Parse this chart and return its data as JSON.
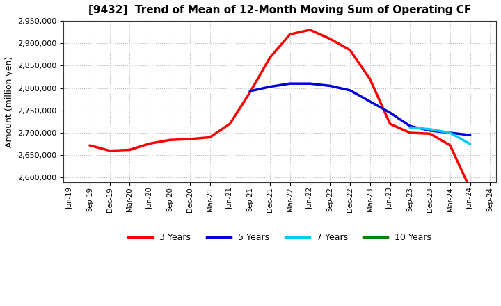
{
  "title": "[9432]  Trend of Mean of 12-Month Moving Sum of Operating CF",
  "ylabel": "Amount (million yen)",
  "background_color": "#ffffff",
  "grid_color": "#bbbbbb",
  "ylim": [
    2590000,
    2940000
  ],
  "yticks": [
    2600000,
    2650000,
    2700000,
    2750000,
    2800000,
    2850000,
    2900000,
    2950000
  ],
  "x_labels": [
    "Jun-19",
    "Sep-19",
    "Dec-19",
    "Mar-20",
    "Jun-20",
    "Sep-20",
    "Dec-20",
    "Mar-21",
    "Jun-21",
    "Sep-21",
    "Dec-21",
    "Mar-22",
    "Jun-22",
    "Sep-22",
    "Dec-22",
    "Mar-23",
    "Jun-23",
    "Sep-23",
    "Dec-23",
    "Mar-24",
    "Jun-24",
    "Sep-24"
  ],
  "series": {
    "3 Years": {
      "color": "#ff0000",
      "linewidth": 2.5,
      "data_x": [
        1,
        2,
        3,
        4,
        5,
        6,
        7,
        8,
        9,
        10,
        11,
        12,
        13,
        14,
        15,
        16,
        17,
        18,
        19,
        20
      ],
      "data_y": [
        2672000,
        2660000,
        2662000,
        2676000,
        2684000,
        2686000,
        2690000,
        2720000,
        2790000,
        2868000,
        2920000,
        2930000,
        2910000,
        2885000,
        2820000,
        2720000,
        2700000,
        2698000,
        2672000,
        2575000
      ]
    },
    "5 Years": {
      "color": "#0000dd",
      "linewidth": 2.5,
      "data_x": [
        9,
        10,
        11,
        12,
        13,
        14,
        15,
        16,
        17,
        18,
        19,
        20
      ],
      "data_y": [
        2793000,
        2803000,
        2810000,
        2810000,
        2805000,
        2795000,
        2770000,
        2745000,
        2715000,
        2705000,
        2700000,
        2695000
      ]
    },
    "7 Years": {
      "color": "#00ccee",
      "linewidth": 2.5,
      "data_x": [
        17,
        18,
        19,
        20
      ],
      "data_y": [
        2712000,
        2708000,
        2700000,
        2675000
      ]
    },
    "10 Years": {
      "color": "#008800",
      "linewidth": 2.5,
      "data_x": [],
      "data_y": []
    }
  },
  "legend_order": [
    "3 Years",
    "5 Years",
    "7 Years",
    "10 Years"
  ]
}
